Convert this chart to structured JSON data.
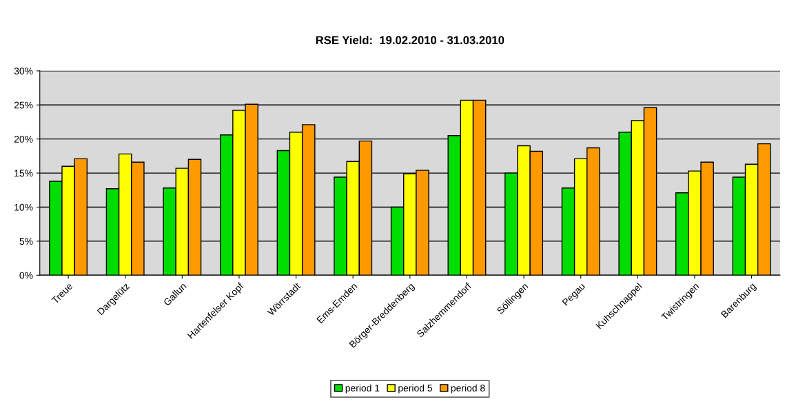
{
  "chart_data": {
    "type": "bar",
    "title": "RSE Yield:  19.02.2010 - 31.03.2010",
    "categories": [
      "Treue",
      "Dargelütz",
      "Gallun",
      "Hartenfelser Kopf",
      "Wörrstadt",
      "Ems-Emden",
      "Börger-Breddenberg",
      "Salzhemmendorf",
      "Söllingen",
      "Pegau",
      "Kuhschnappel",
      "Twistringen",
      "Barenburg"
    ],
    "series": [
      {
        "name": "period 1",
        "color": "#00dd00",
        "values": [
          13.8,
          12.7,
          12.8,
          20.6,
          18.3,
          14.4,
          10.0,
          20.5,
          15.0,
          12.8,
          21.0,
          12.1,
          14.4
        ]
      },
      {
        "name": "period 5",
        "color": "#ffff00",
        "values": [
          16.0,
          17.8,
          15.7,
          24.2,
          21.0,
          16.7,
          14.9,
          25.7,
          19.0,
          17.1,
          22.7,
          15.3,
          16.3
        ]
      },
      {
        "name": "period 8",
        "color": "#ff9900",
        "values": [
          17.1,
          16.6,
          17.0,
          25.1,
          22.1,
          19.7,
          15.4,
          25.7,
          18.2,
          18.7,
          24.6,
          16.6,
          19.3
        ]
      }
    ],
    "ylim": [
      0,
      30
    ],
    "yticks": [
      {
        "value": 0,
        "label": "0%"
      },
      {
        "value": 5,
        "label": "5%"
      },
      {
        "value": 10,
        "label": "10%"
      },
      {
        "value": 15,
        "label": "15%"
      },
      {
        "value": 20,
        "label": "20%"
      },
      {
        "value": 25,
        "label": "25%"
      },
      {
        "value": 30,
        "label": "30%"
      }
    ],
    "grid": "y",
    "legend": "bottom"
  }
}
